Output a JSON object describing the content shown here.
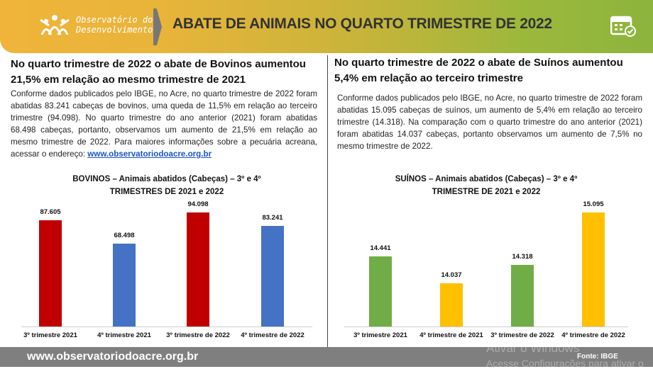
{
  "header": {
    "logo_line1": "Observatório do",
    "logo_line2": "Desenvolvimento",
    "title": "ABATE DE ANIMAIS NO QUARTO TRIMESTRE DE 2022"
  },
  "left": {
    "heading": "No quarto trimestre de 2022 o abate de Bovinos aumentou 21,5% em relação ao mesmo trimestre de 2021",
    "body": "Conforme dados publicados pelo IBGE, no Acre, no quarto trimestre de 2022 foram abatidas 83.241 cabeças de bovinos, uma queda de 11,5% em relação ao terceiro trimestre (94.098). No quarto trimestre do ano anterior (2021) foram abatidas 68.498 cabeças, portanto, observamos um aumento de 21,5% em relação ao mesmo trimestre de 2022.  Para maiores informações sobre a pecuária acreana, acessar o endereço: ",
    "link": "www.observatoriodoacre.org.br"
  },
  "right": {
    "heading": "No quarto trimestre de 2022 o abate de Suínos aumentou 5,4% em relação ao terceiro trimestre",
    "body": "Conforme dados publicados pelo IBGE, no Acre, no quarto trimestre de 2022 foram abatidas 15.095 cabeças de suínos, um aumento de 5,4% em relação ao terceiro trimestre (14.318). Na comparação com o quarto trimestre do ano anterior (2021) foram abatidas 14.037 cabeças, portanto observamos um aumento de 7,5% no mesmo trimestre de 2022."
  },
  "chart_data": [
    {
      "type": "bar",
      "title_line1": "BOVINOS – Animais abatidos (Cabeças) – 3º e 4º",
      "title_line2": "TRIMESTRES DE 2021 e 2022",
      "categories": [
        "3º trimestre 2021",
        "4º trimestre 2021",
        "3º trimestre de 2022",
        "4º trimestre de 2022"
      ],
      "values": [
        87605,
        68498,
        94098,
        83241
      ],
      "labels": [
        "87.605",
        "68.498",
        "94.098",
        "83.241"
      ],
      "colors": [
        "#c00000",
        "#4472c4",
        "#c00000",
        "#4472c4"
      ],
      "ylim": [
        0,
        94098
      ]
    },
    {
      "type": "bar",
      "title_line1": "SUÍNOS – Animais abatidos (Cabeças) – 3º e 4º",
      "title_line2": "TRIMESTRE DE 2021 e 2022",
      "categories": [
        "3º trimestre 2021",
        "4º trimestre de 2021",
        "3º trimestre de 2022",
        "4º trimestre de 2022"
      ],
      "values": [
        14441,
        14037,
        14318,
        15095
      ],
      "labels": [
        "14.441",
        "14.037",
        "14.318",
        "15.095"
      ],
      "colors": [
        "#70ad47",
        "#ffc000",
        "#70ad47",
        "#ffc000"
      ],
      "ylim": [
        13400,
        15095
      ]
    }
  ],
  "footer": {
    "site": "www.observatoriodoacre.org.br",
    "source": "Fonte: IBGE",
    "wm1": "Ativar o Windows",
    "wm2": "Acesse Configurações para ativar o"
  }
}
